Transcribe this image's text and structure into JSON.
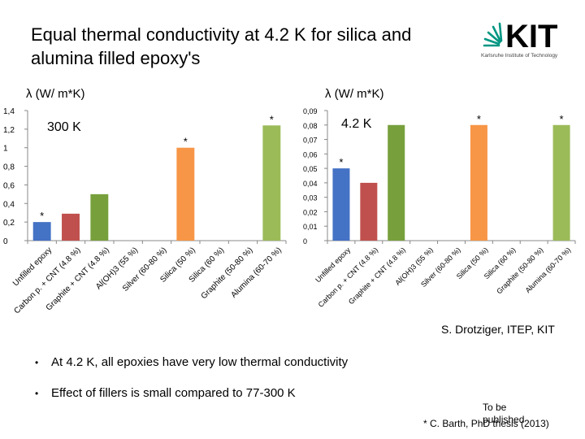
{
  "slide": {
    "title": "Equal thermal conductivity at 4.2 K for silica and alumina filled epoxy's",
    "credit": "S. Drotziger, ITEP, KIT",
    "bullets": [
      "At 4.2 K, all epoxies have very low thermal conductivity",
      "Effect of fillers is small compared to 77-300 K"
    ],
    "footnote_tobe": "To be published",
    "footnote_cite": "* C. Barth, PhD thesis (2013)"
  },
  "logo": {
    "text": "KIT",
    "subtitle": "Karlsruhe Institute of Technology",
    "color": "#009682"
  },
  "chart_data": [
    {
      "type": "bar",
      "ylabel": "λ  (W/ m*K)",
      "annotation": "300 K",
      "ylim": [
        0,
        1.4
      ],
      "yticks": [
        "0",
        "0,2",
        "0,4",
        "0,6",
        "0,8",
        "1",
        "1,2",
        "1,4"
      ],
      "grid": false,
      "legend": "none",
      "categories": [
        "Unfilled epoxy",
        "Carbon p. + CNT (4.8 %)",
        "Graphite + CNT (4.8 %)",
        "Al(OH)3 (55 %)",
        "Silver (60-80 %)",
        "Silica (50 %)",
        "Silica (60 %)",
        "Graphite (50-80 %)",
        "Alumina (60-70 %)"
      ],
      "values": [
        0.2,
        0.29,
        0.5,
        null,
        null,
        1.0,
        null,
        null,
        1.24
      ],
      "starred": [
        true,
        false,
        false,
        false,
        false,
        true,
        false,
        false,
        true
      ],
      "colors": [
        "#4472c4",
        "#c0504d",
        "#77a03c",
        "#8064a2",
        "#4bacc6",
        "#f79646",
        "#2c4d75",
        "#7c2c2a",
        "#9bbb59"
      ]
    },
    {
      "type": "bar",
      "ylabel": "λ  (W/ m*K)",
      "annotation": "4.2 K",
      "ylim": [
        0,
        0.09
      ],
      "yticks": [
        "0",
        "0,01",
        "0,02",
        "0,03",
        "0,04",
        "0,05",
        "0,06",
        "0,07",
        "0,08",
        "0,09"
      ],
      "grid": false,
      "legend": "none",
      "categories": [
        "Unfilled epoxy",
        "Carbon p. + CNT (4.8 %)",
        "Graphite + CNT (4.8 %)",
        "Al(OH)3 (55 %)",
        "Silver (60-80 %)",
        "Silica (50 %)",
        "Silica (60 %)",
        "Graphite (50-80 %)",
        "Alumina (60-70 %)"
      ],
      "values": [
        0.05,
        0.04,
        0.08,
        null,
        null,
        0.08,
        null,
        null,
        0.08
      ],
      "starred": [
        true,
        false,
        false,
        false,
        false,
        true,
        false,
        false,
        true
      ],
      "colors": [
        "#4472c4",
        "#c0504d",
        "#77a03c",
        "#8064a2",
        "#4bacc6",
        "#f79646",
        "#2c4d75",
        "#7c2c2a",
        "#9bbb59"
      ]
    }
  ]
}
